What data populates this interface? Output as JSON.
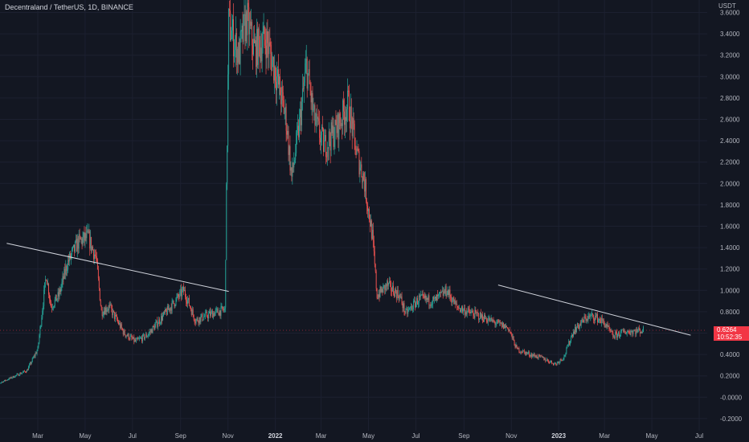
{
  "header": {
    "symbol": "Decentraland / TetherUS, 1D, BINANCE",
    "currency": "USDT"
  },
  "last_price": {
    "value": "0.6264",
    "countdown": "10:52:35"
  },
  "colors": {
    "background": "#131722",
    "up": "#26a69a",
    "down": "#ef5350",
    "trendline": "#d1d4dc",
    "price_badge": "#f23645",
    "axis_text": "#b2b5be"
  },
  "chart_data": {
    "type": "candlestick",
    "title": "Decentraland / TetherUS, 1D, BINANCE",
    "ylim": [
      -0.2,
      3.6
    ],
    "y_ticks": [
      "3.6000",
      "3.4000",
      "3.2000",
      "3.0000",
      "2.8000",
      "2.6000",
      "2.4000",
      "2.2000",
      "2.0000",
      "1.8000",
      "1.6000",
      "1.4000",
      "1.2000",
      "1.0000",
      "0.8000",
      "0.6000",
      "0.4000",
      "0.2000",
      "-0.0000",
      "-0.2000"
    ],
    "y_tick_values": [
      3.6,
      3.4,
      3.2,
      3.0,
      2.8,
      2.6,
      2.4,
      2.2,
      2.0,
      1.8,
      1.6,
      1.4,
      1.2,
      1.0,
      0.8,
      0.6,
      0.4,
      0.2,
      0.0,
      -0.2
    ],
    "x_ticks": [
      {
        "label": "Mar",
        "date": "2021-03-01"
      },
      {
        "label": "May",
        "date": "2021-05-01"
      },
      {
        "label": "Jul",
        "date": "2021-07-01"
      },
      {
        "label": "Sep",
        "date": "2021-09-01"
      },
      {
        "label": "Nov",
        "date": "2021-11-01"
      },
      {
        "label": "2022",
        "date": "2022-01-01",
        "year": true
      },
      {
        "label": "Mar",
        "date": "2022-03-01"
      },
      {
        "label": "May",
        "date": "2022-05-01"
      },
      {
        "label": "Jul",
        "date": "2022-07-01"
      },
      {
        "label": "Sep",
        "date": "2022-09-01"
      },
      {
        "label": "Nov",
        "date": "2022-11-01"
      },
      {
        "label": "2023",
        "date": "2023-01-01",
        "year": true
      },
      {
        "label": "Mar",
        "date": "2023-03-01"
      },
      {
        "label": "May",
        "date": "2023-05-01"
      },
      {
        "label": "Jul",
        "date": "2023-07-01"
      }
    ],
    "price_path": [
      [
        "2021-01-01",
        0.1
      ],
      [
        "2021-01-25",
        0.18
      ],
      [
        "2021-02-15",
        0.25
      ],
      [
        "2021-03-01",
        0.45
      ],
      [
        "2021-03-12",
        1.15
      ],
      [
        "2021-03-18",
        0.85
      ],
      [
        "2021-03-28",
        0.95
      ],
      [
        "2021-04-08",
        1.25
      ],
      [
        "2021-04-22",
        1.45
      ],
      [
        "2021-05-05",
        1.5
      ],
      [
        "2021-05-15",
        1.3
      ],
      [
        "2021-05-22",
        0.8
      ],
      [
        "2021-06-01",
        0.85
      ],
      [
        "2021-06-20",
        0.6
      ],
      [
        "2021-07-05",
        0.52
      ],
      [
        "2021-07-20",
        0.58
      ],
      [
        "2021-08-05",
        0.72
      ],
      [
        "2021-08-25",
        0.9
      ],
      [
        "2021-09-05",
        1.0
      ],
      [
        "2021-09-20",
        0.72
      ],
      [
        "2021-10-10",
        0.78
      ],
      [
        "2021-10-28",
        0.82
      ],
      [
        "2021-11-02",
        3.5
      ],
      [
        "2021-11-15",
        3.2
      ],
      [
        "2021-11-25",
        3.55
      ],
      [
        "2021-12-05",
        3.25
      ],
      [
        "2021-12-20",
        3.35
      ],
      [
        "2022-01-01",
        3.05
      ],
      [
        "2022-01-15",
        2.6
      ],
      [
        "2022-01-22",
        2.05
      ],
      [
        "2022-02-01",
        2.55
      ],
      [
        "2022-02-10",
        3.1
      ],
      [
        "2022-02-20",
        2.6
      ],
      [
        "2022-03-05",
        2.35
      ],
      [
        "2022-03-20",
        2.5
      ],
      [
        "2022-04-05",
        2.75
      ],
      [
        "2022-04-15",
        2.3
      ],
      [
        "2022-04-25",
        2.05
      ],
      [
        "2022-05-06",
        1.5
      ],
      [
        "2022-05-12",
        0.95
      ],
      [
        "2022-05-25",
        1.05
      ],
      [
        "2022-06-10",
        0.95
      ],
      [
        "2022-06-18",
        0.78
      ],
      [
        "2022-07-05",
        0.92
      ],
      [
        "2022-07-25",
        0.9
      ],
      [
        "2022-08-10",
        1.0
      ],
      [
        "2022-08-22",
        0.85
      ],
      [
        "2022-09-05",
        0.8
      ],
      [
        "2022-09-25",
        0.75
      ],
      [
        "2022-10-10",
        0.7
      ],
      [
        "2022-10-28",
        0.65
      ],
      [
        "2022-11-08",
        0.45
      ],
      [
        "2022-11-25",
        0.4
      ],
      [
        "2022-12-10",
        0.37
      ],
      [
        "2022-12-28",
        0.31
      ],
      [
        "2023-01-08",
        0.38
      ],
      [
        "2023-01-20",
        0.62
      ],
      [
        "2023-02-05",
        0.74
      ],
      [
        "2023-02-15",
        0.76
      ],
      [
        "2023-02-28",
        0.7
      ],
      [
        "2023-03-12",
        0.57
      ],
      [
        "2023-03-25",
        0.61
      ],
      [
        "2023-04-10",
        0.62
      ],
      [
        "2023-04-20",
        0.6264
      ]
    ],
    "trendlines": [
      {
        "start": [
          "2021-01-20",
          1.44
        ],
        "end": [
          "2021-11-02",
          0.99
        ]
      },
      {
        "start": [
          "2022-10-15",
          1.05
        ],
        "end": [
          "2023-06-20",
          0.58
        ]
      }
    ],
    "last_price": 0.6264
  }
}
